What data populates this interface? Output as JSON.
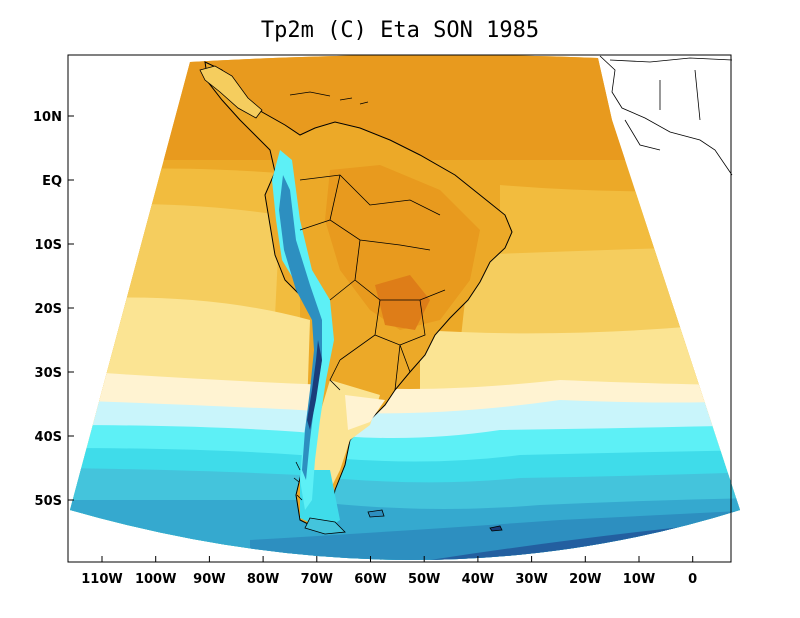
{
  "title": "Tp2m (C) Eta SON 1985",
  "colors": {
    "deep_orange": "#e89a1e",
    "orange": "#eca928",
    "gold": "#f2bc3e",
    "light_gold": "#f5cd5e",
    "pale_yellow": "#fbe493",
    "cream": "#fff3d2",
    "pale_cyan": "#c9f5fb",
    "cyan": "#5df0f6",
    "aqua": "#3fdcea",
    "teal_light": "#44c4dc",
    "teal": "#35a9cf",
    "blue_mid": "#2d8fc0",
    "blue_dark": "#235fa0",
    "navy": "#1a3d7a",
    "coast_line": "#000000"
  },
  "chart_data": {
    "type": "heatmap",
    "title": "Tp2m (C) Eta SON 1985",
    "x_tick_labels": [
      "110W",
      "100W",
      "90W",
      "80W",
      "70W",
      "60W",
      "50W",
      "40W",
      "30W",
      "20W",
      "10W",
      "0"
    ],
    "y_tick_labels": [
      "10N",
      "EQ",
      "10S",
      "20S",
      "30S",
      "40S",
      "50S"
    ],
    "lon_range": [
      -117,
      7
    ],
    "lat_range": [
      -59,
      19
    ],
    "grid": false,
    "legend": "none"
  }
}
